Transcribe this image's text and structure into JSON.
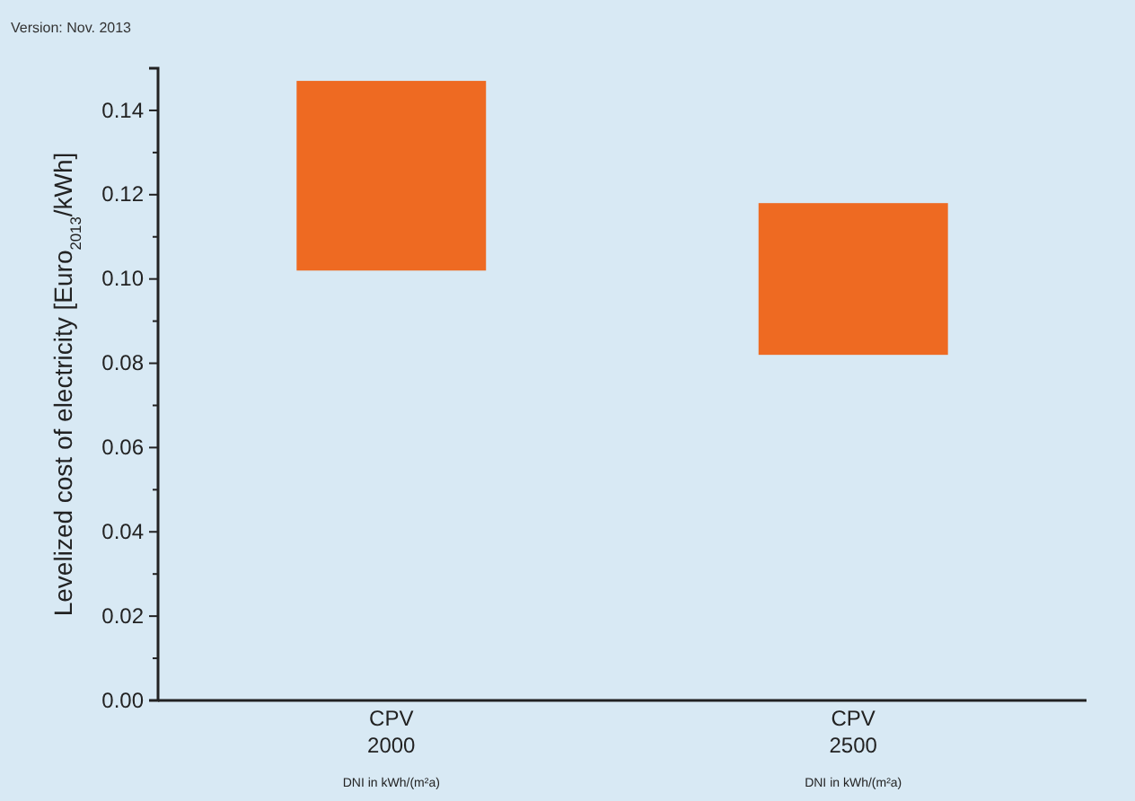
{
  "chart_data": {
    "type": "bar",
    "ylabel": "Levelized cost of electricity [Euro$_{2013}$/kWh]",
    "categories": [
      "CPV\n2000\nDNI in kWh/(m²a)",
      "CPV\n2500\nDNI in kWh/(m²a)"
    ],
    "base": [
      0.102,
      0.082
    ],
    "values": [
      0.045,
      0.036
    ],
    "color": "#ee6a22",
    "ylim": [
      0,
      0.15
    ],
    "yticks": [
      {
        "value": 0,
        "label": "0.00"
      },
      {
        "value": 0.01,
        "label": null
      },
      {
        "value": 0.02,
        "label": "0.02"
      },
      {
        "value": 0.03,
        "label": null
      },
      {
        "value": 0.04,
        "label": "0.04"
      },
      {
        "value": 0.05,
        "label": null
      },
      {
        "value": 0.06,
        "label": "0.06"
      },
      {
        "value": 0.07,
        "label": null
      },
      {
        "value": 0.08,
        "label": "0.08"
      },
      {
        "value": 0.09,
        "label": null
      },
      {
        "value": 0.1,
        "label": "0.10"
      },
      {
        "value": 0.11,
        "label": null
      },
      {
        "value": 0.12,
        "label": "0.12"
      },
      {
        "value": 0.13,
        "label": null
      },
      {
        "value": 0.14,
        "label": "0.14"
      }
    ],
    "annotations": [
      "Version: Nov. 2013"
    ]
  }
}
